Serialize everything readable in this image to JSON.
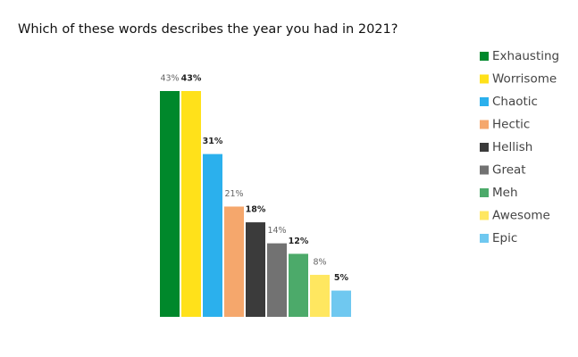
{
  "chart_data": {
    "type": "bar",
    "title": "Which of these words describes the year you had in 2021?",
    "series": [
      {
        "name": "Exhausting",
        "color": "#00882b",
        "values": [
          43
        ],
        "value_labels": [
          "43%"
        ]
      },
      {
        "name": "Worrisome",
        "color": "#ffe11a",
        "values": [
          43
        ],
        "value_labels": [
          "43%"
        ]
      },
      {
        "name": "Chaotic",
        "color": "#2bb0ed",
        "values": [
          31
        ],
        "value_labels": [
          "31%"
        ]
      },
      {
        "name": "Hectic",
        "color": "#f5a76c",
        "values": [
          21
        ],
        "value_labels": [
          "21%"
        ]
      },
      {
        "name": "Hellish",
        "color": "#3b3b3b",
        "values": [
          18
        ],
        "value_labels": [
          "18%"
        ]
      },
      {
        "name": "Great",
        "color": "#727272",
        "values": [
          14
        ],
        "value_labels": [
          "14%"
        ]
      },
      {
        "name": "Meh",
        "color": "#4caa6a",
        "values": [
          12
        ],
        "value_labels": [
          "12%"
        ]
      },
      {
        "name": "Awesome",
        "color": "#ffe760",
        "values": [
          8
        ],
        "value_labels": [
          "8%"
        ]
      },
      {
        "name": "Epic",
        "color": "#6fc8f0",
        "values": [
          5
        ],
        "value_labels": [
          "5%"
        ]
      }
    ]
  }
}
